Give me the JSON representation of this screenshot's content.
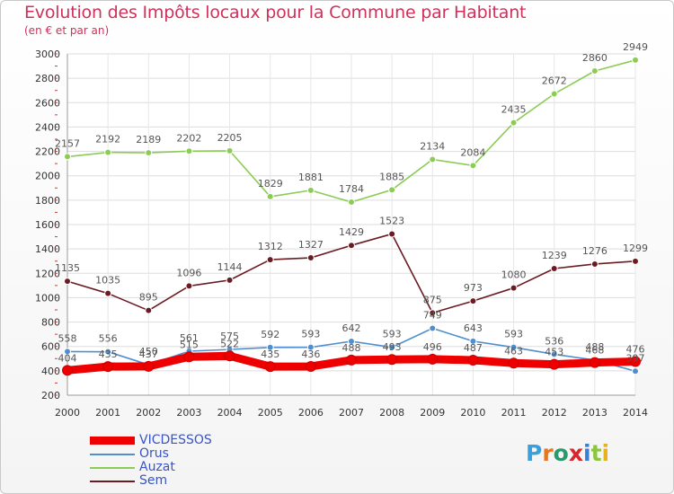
{
  "chart_data": {
    "type": "line",
    "title": "Evolution des Impôts locaux pour la Commune par Habitant",
    "subtitle": "(en € et par an)",
    "x": [
      "2000",
      "2001",
      "2002",
      "2003",
      "2004",
      "2005",
      "2006",
      "2007",
      "2008",
      "2009",
      "2010",
      "2011",
      "2012",
      "2013",
      "2014"
    ],
    "yticks": [
      200,
      400,
      600,
      800,
      1000,
      1200,
      1400,
      1600,
      1800,
      2000,
      2200,
      2400,
      2600,
      2800,
      3000
    ],
    "ylim": [
      200,
      3000
    ],
    "series": [
      {
        "name": "VICDESSOS",
        "color": "#ee0000",
        "values": [
          404,
          435,
          437,
          515,
          522,
          435,
          436,
          488,
          493,
          496,
          487,
          463,
          453,
          468,
          476
        ],
        "labels": [
          "404",
          "435",
          "437",
          "515",
          "522",
          "435",
          "436",
          "488",
          "493",
          "496",
          "487",
          "463",
          "453",
          "468",
          "476"
        ]
      },
      {
        "name": "Orus",
        "color": "#4f8fcf",
        "values": [
          558,
          556,
          450,
          561,
          575,
          592,
          593,
          642,
          593,
          749,
          643,
          593,
          536,
          488,
          397
        ],
        "labels": [
          "558",
          "556",
          "450",
          "561",
          "575",
          "592",
          "593",
          "642",
          "593",
          "749",
          "643",
          "593",
          "536",
          "488",
          "397"
        ]
      },
      {
        "name": "Auzat",
        "color": "#8ccc55",
        "values": [
          2157,
          2192,
          2189,
          2202,
          2205,
          1829,
          1881,
          1784,
          1885,
          2134,
          2084,
          2435,
          2672,
          2860,
          2949
        ],
        "labels": [
          "2157",
          "2192",
          "2189",
          "2202",
          "2205",
          "1829",
          "1881",
          "1784",
          "1885",
          "2134",
          "2084",
          "2435",
          "2672",
          "2860",
          "2949"
        ]
      },
      {
        "name": "Sem",
        "color": "#6b1c22",
        "values": [
          1135,
          1035,
          895,
          1096,
          1144,
          1312,
          1327,
          1429,
          1523,
          875,
          973,
          1080,
          1239,
          1276,
          1299
        ],
        "labels": [
          "1135",
          "1035",
          "895",
          "1096",
          "1144",
          "1312",
          "1327",
          "1429",
          "1523",
          "875",
          "973",
          "1080",
          "1239",
          "1276",
          "1299"
        ]
      }
    ]
  },
  "legend": {
    "items": [
      "VICDESSOS",
      "Orus",
      "Auzat",
      "Sem"
    ]
  },
  "logo": {
    "text": "Proxiti",
    "letters": [
      "P",
      "r",
      "o",
      "x",
      "i",
      "t",
      "i"
    ],
    "colors": [
      "#3aa0dd",
      "#e8761c",
      "#2a9a6a",
      "#d8262c",
      "#3a7fd0",
      "#8cc63f",
      "#e8b21c"
    ]
  }
}
